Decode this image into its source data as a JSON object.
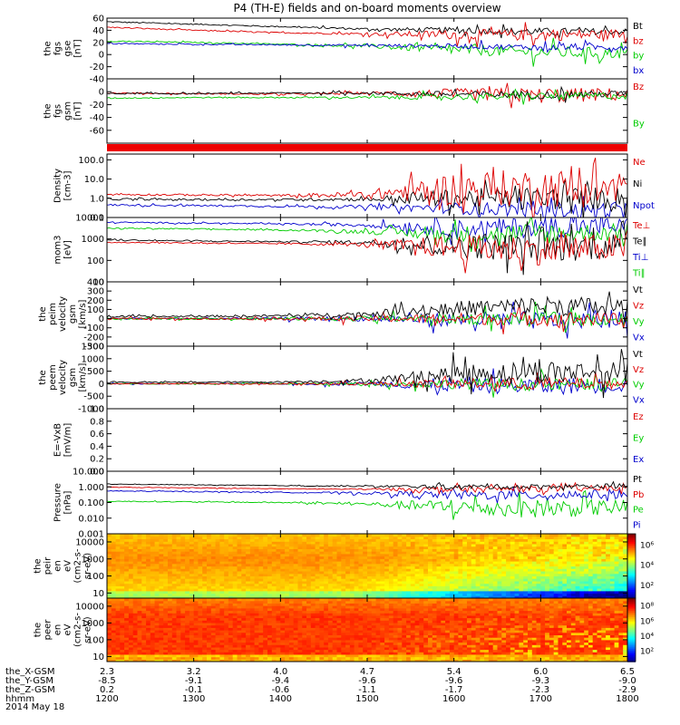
{
  "title": "P4 (TH-E) fields and on-board moments overview",
  "date_label": "2014 May 18",
  "chart_data": {
    "type": "line",
    "x": {
      "hhmm": [
        "1200",
        "1300",
        "1400",
        "1500",
        "1600",
        "1700",
        "1800"
      ],
      "rows": [
        {
          "label": "the_X-GSM",
          "values": [
            "2.3",
            "3.2",
            "4.0",
            "4.7",
            "5.4",
            "6.0",
            "6.5"
          ]
        },
        {
          "label": "the_Y-GSM",
          "values": [
            "-8.5",
            "-9.1",
            "-9.4",
            "-9.6",
            "-9.6",
            "-9.3",
            "-9.0"
          ]
        },
        {
          "label": "the_Z-GSM",
          "values": [
            "0.2",
            "-0.1",
            "-0.6",
            "-1.1",
            "-1.7",
            "-2.3",
            "-2.9"
          ]
        },
        {
          "label": "hhmm",
          "values": [
            "1200",
            "1300",
            "1400",
            "1500",
            "1600",
            "1700",
            "1800"
          ]
        }
      ]
    },
    "panels": [
      {
        "id": "fgs_gse",
        "ylabel": [
          "the",
          "fgs",
          "gse",
          "[nT]"
        ],
        "scale": "linear",
        "yrange": [
          -40,
          60
        ],
        "ticks": [
          "60",
          "40",
          "20",
          "0",
          "-20",
          "-40"
        ],
        "legend": [
          {
            "name": "Bt",
            "color": "#000000"
          },
          {
            "name": "bz",
            "color": "#dd0000"
          },
          {
            "name": "by",
            "color": "#00cc00"
          },
          {
            "name": "bx",
            "color": "#0000cc"
          }
        ],
        "series": [
          {
            "name": "Bt",
            "color": "#000000",
            "levels": [
              54,
              50,
              46,
              42,
              40,
              38,
              38
            ],
            "noise": [
              1,
              1,
              1,
              2,
              5,
              6,
              5
            ]
          },
          {
            "name": "bz",
            "color": "#dd0000",
            "levels": [
              45,
              40,
              36,
              34,
              33,
              32,
              34
            ],
            "noise": [
              1,
              1,
              1,
              2,
              8,
              10,
              8
            ]
          },
          {
            "name": "by",
            "color": "#00cc00",
            "levels": [
              22,
              20,
              17,
              14,
              8,
              4,
              2
            ],
            "noise": [
              1,
              1,
              1,
              3,
              8,
              10,
              9
            ]
          },
          {
            "name": "bx",
            "color": "#0000cc",
            "levels": [
              18,
              17,
              16,
              15,
              14,
              12,
              12
            ],
            "noise": [
              1,
              1,
              1,
              2,
              4,
              5,
              5
            ]
          }
        ]
      },
      {
        "id": "fgs_gsm",
        "ylabel": [
          "the",
          "fgs",
          "gsm",
          "[nT]"
        ],
        "scale": "linear",
        "yrange": [
          -80,
          20
        ],
        "ticks": [
          "0",
          "-20",
          "-40",
          "-60"
        ],
        "legend": [
          {
            "name": "Bz",
            "color": "#dd0000"
          },
          {
            "name": "By",
            "color": "#00cc00"
          }
        ],
        "series": [
          {
            "name": "Bz",
            "color": "#dd0000",
            "levels": [
              -2,
              -3,
              -4,
              -2,
              -4,
              -6,
              -4
            ],
            "noise": [
              1,
              1,
              1,
              2,
              9,
              12,
              10
            ]
          },
          {
            "name": "Bt",
            "color": "#000000",
            "levels": [
              -3,
              -3,
              -2,
              -2,
              -4,
              -5,
              -3
            ],
            "noise": [
              1,
              1,
              1,
              2,
              5,
              6,
              5
            ]
          },
          {
            "name": "By",
            "color": "#00cc00",
            "levels": [
              -10,
              -9,
              -9,
              -9,
              -8,
              -7,
              -6
            ],
            "noise": [
              1,
              1,
              1,
              2,
              5,
              6,
              6
            ]
          }
        ]
      },
      {
        "id": "density",
        "ylabel": [
          "Density",
          "[cm-3]"
        ],
        "scale": "log",
        "yrange": [
          0.1,
          200
        ],
        "ticks": [
          "100.0",
          "10.0",
          "1.0",
          "0.1"
        ],
        "legend": [
          {
            "name": "Ne",
            "color": "#dd0000"
          },
          {
            "name": "Ni",
            "color": "#000000"
          },
          {
            "name": "Npot",
            "color": "#0000cc"
          }
        ],
        "series": [
          {
            "name": "Npot",
            "color": "#0000cc",
            "levels": [
              0.45,
              0.42,
              0.38,
              0.35,
              0.3,
              0.25,
              0.25
            ],
            "noise": [
              0.05,
              0.05,
              0.05,
              0.1,
              0.3,
              0.4,
              0.4
            ]
          },
          {
            "name": "Ni",
            "color": "#000000",
            "levels": [
              0.9,
              0.85,
              0.85,
              0.9,
              1.0,
              1.0,
              1.0
            ],
            "noise": [
              0.05,
              0.05,
              0.05,
              0.1,
              0.5,
              0.6,
              0.6
            ]
          },
          {
            "name": "Ne",
            "color": "#dd0000",
            "levels": [
              1.6,
              1.5,
              1.4,
              1.5,
              3.0,
              3.5,
              3.0
            ],
            "noise": [
              0.05,
              0.05,
              0.05,
              0.2,
              0.9,
              1.0,
              1.0
            ]
          }
        ]
      },
      {
        "id": "temperature",
        "ylabel": [
          "mom3",
          "[eV]"
        ],
        "scale": "log",
        "yrange": [
          10,
          10000
        ],
        "ticks": [
          "10000",
          "1000",
          "100",
          "10"
        ],
        "legend": [
          {
            "name": "Te⊥",
            "color": "#dd0000"
          },
          {
            "name": "Te∥",
            "color": "#000000"
          },
          {
            "name": "Ti⊥",
            "color": "#0000cc"
          },
          {
            "name": "Ti∥",
            "color": "#00cc00"
          }
        ],
        "series": [
          {
            "name": "Ti⊥",
            "color": "#0000cc",
            "levels": [
              6000,
              5500,
              5000,
              4500,
              3000,
              3500,
              4000
            ],
            "noise": [
              0.03,
              0.03,
              0.03,
              0.1,
              0.4,
              0.5,
              0.4
            ]
          },
          {
            "name": "Ti∥",
            "color": "#00cc00",
            "levels": [
              3200,
              2900,
              2600,
              2200,
              1600,
              1800,
              2000
            ],
            "noise": [
              0.03,
              0.03,
              0.03,
              0.1,
              0.4,
              0.5,
              0.4
            ]
          },
          {
            "name": "Te∥",
            "color": "#000000",
            "levels": [
              900,
              800,
              750,
              700,
              500,
              400,
              500
            ],
            "noise": [
              0.03,
              0.03,
              0.03,
              0.1,
              0.6,
              0.7,
              0.6
            ]
          },
          {
            "name": "Te⊥",
            "color": "#dd0000",
            "levels": [
              700,
              650,
              600,
              550,
              400,
              300,
              400
            ],
            "noise": [
              0.03,
              0.03,
              0.03,
              0.1,
              0.6,
              0.7,
              0.6
            ]
          }
        ]
      },
      {
        "id": "peim_velocity",
        "ylabel": [
          "the",
          "peim",
          "velocity",
          "gsm",
          "[km/s]"
        ],
        "scale": "linear",
        "yrange": [
          -300,
          400
        ],
        "ticks": [
          "400",
          "300",
          "200",
          "100",
          "0",
          "-100",
          "-200",
          "-300"
        ],
        "legend": [
          {
            "name": "Vt",
            "color": "#000000"
          },
          {
            "name": "Vz",
            "color": "#dd0000"
          },
          {
            "name": "Vy",
            "color": "#00cc00"
          },
          {
            "name": "Vx",
            "color": "#0000cc"
          }
        ],
        "series": [
          {
            "name": "Vx",
            "color": "#0000cc",
            "levels": [
              0,
              0,
              0,
              0,
              -10,
              -20,
              -10
            ],
            "noise": [
              10,
              10,
              15,
              30,
              80,
              100,
              90
            ]
          },
          {
            "name": "Vy",
            "color": "#00cc00",
            "levels": [
              0,
              0,
              0,
              0,
              0,
              -10,
              0
            ],
            "noise": [
              10,
              10,
              15,
              30,
              60,
              80,
              70
            ]
          },
          {
            "name": "Vz",
            "color": "#dd0000",
            "levels": [
              0,
              0,
              0,
              0,
              0,
              0,
              0
            ],
            "noise": [
              10,
              10,
              15,
              30,
              60,
              80,
              70
            ]
          },
          {
            "name": "Vt",
            "color": "#000000",
            "levels": [
              20,
              25,
              30,
              50,
              110,
              140,
              120
            ],
            "noise": [
              10,
              10,
              15,
              30,
              80,
              110,
              100
            ]
          }
        ]
      },
      {
        "id": "peem_velocity",
        "ylabel": [
          "the",
          "peem",
          "velocity",
          "gsm",
          "[km/s]"
        ],
        "scale": "linear",
        "yrange": [
          -1000,
          1500
        ],
        "ticks": [
          "1500",
          "1000",
          "500",
          "0",
          "-500",
          "-1000"
        ],
        "legend": [
          {
            "name": "Vt",
            "color": "#000000"
          },
          {
            "name": "Vz",
            "color": "#dd0000"
          },
          {
            "name": "Vy",
            "color": "#00cc00"
          },
          {
            "name": "Vx",
            "color": "#0000cc"
          }
        ],
        "series": [
          {
            "name": "Vx",
            "color": "#0000cc",
            "levels": [
              0,
              0,
              0,
              0,
              -50,
              -100,
              -50
            ],
            "noise": [
              20,
              20,
              30,
              80,
              300,
              350,
              300
            ]
          },
          {
            "name": "Vy",
            "color": "#00cc00",
            "levels": [
              0,
              0,
              0,
              0,
              0,
              -50,
              0
            ],
            "noise": [
              20,
              20,
              30,
              60,
              200,
              250,
              200
            ]
          },
          {
            "name": "Vz",
            "color": "#dd0000",
            "levels": [
              0,
              0,
              0,
              0,
              0,
              0,
              0
            ],
            "noise": [
              20,
              20,
              30,
              60,
              200,
              250,
              200
            ]
          },
          {
            "name": "Vt",
            "color": "#000000",
            "levels": [
              60,
              60,
              70,
              120,
              400,
              500,
              450
            ],
            "noise": [
              20,
              20,
              30,
              80,
              350,
              450,
              400
            ]
          }
        ]
      },
      {
        "id": "efield",
        "ylabel": [
          "E=-VxB",
          "[mV/m]"
        ],
        "scale": "linear",
        "yrange": [
          0,
          1
        ],
        "ticks": [
          "1.0",
          "0.8",
          "0.6",
          "0.4",
          "0.2",
          "0.0"
        ],
        "legend": [
          {
            "name": "Ez",
            "color": "#dd0000"
          },
          {
            "name": "Ey",
            "color": "#00cc00"
          },
          {
            "name": "Ex",
            "color": "#0000cc"
          }
        ],
        "series": []
      },
      {
        "id": "pressure",
        "ylabel": [
          "Pressure",
          "[nPa]"
        ],
        "scale": "log",
        "yrange": [
          0.001,
          10
        ],
        "ticks": [
          "10.000",
          "1.000",
          "0.100",
          "0.010",
          "0.001"
        ],
        "legend": [
          {
            "name": "Pt",
            "color": "#000000"
          },
          {
            "name": "Pb",
            "color": "#dd0000"
          },
          {
            "name": "Pe",
            "color": "#00cc00"
          },
          {
            "name": "Pi",
            "color": "#0000cc"
          }
        ],
        "series": [
          {
            "name": "Pe",
            "color": "#00cc00",
            "levels": [
              0.12,
              0.11,
              0.1,
              0.08,
              0.05,
              0.04,
              0.05
            ],
            "noise": [
              0.03,
              0.03,
              0.04,
              0.1,
              0.5,
              0.6,
              0.5
            ]
          },
          {
            "name": "Pi",
            "color": "#0000cc",
            "levels": [
              0.55,
              0.5,
              0.45,
              0.4,
              0.3,
              0.3,
              0.35
            ],
            "noise": [
              0.03,
              0.03,
              0.03,
              0.08,
              0.3,
              0.3,
              0.3
            ]
          },
          {
            "name": "Pb",
            "color": "#dd0000",
            "levels": [
              0.95,
              0.85,
              0.75,
              0.7,
              0.7,
              0.75,
              0.8
            ],
            "noise": [
              0.02,
              0.02,
              0.02,
              0.05,
              0.2,
              0.2,
              0.2
            ]
          },
          {
            "name": "Pt",
            "color": "#000000",
            "levels": [
              1.5,
              1.35,
              1.2,
              1.1,
              1.0,
              1.05,
              1.15
            ],
            "noise": [
              0.02,
              0.02,
              0.02,
              0.05,
              0.15,
              0.15,
              0.15
            ]
          }
        ]
      },
      {
        "id": "peir_spec",
        "ylabel": [
          "the",
          "peir",
          "en",
          "eV",
          "(cm2-s-",
          "sr-eV)"
        ],
        "scale": "log",
        "kind": "spectrogram",
        "yrange": [
          5,
          30000
        ],
        "ticks": [
          "10000",
          "1000",
          "100",
          "10"
        ],
        "colorbar": {
          "labels": [
            "10⁶",
            "10⁴",
            "10²"
          ]
        }
      },
      {
        "id": "peer_spec",
        "ylabel": [
          "the",
          "peer",
          "en",
          "eV",
          "(cm2-s-",
          "sr-eV)"
        ],
        "scale": "log",
        "kind": "spectrogram",
        "yrange": [
          5,
          30000
        ],
        "ticks": [
          "10000",
          "1000",
          "100",
          "10"
        ],
        "colorbar": {
          "labels": [
            "10⁸",
            "10⁶",
            "10⁴",
            "10²"
          ]
        }
      }
    ]
  }
}
